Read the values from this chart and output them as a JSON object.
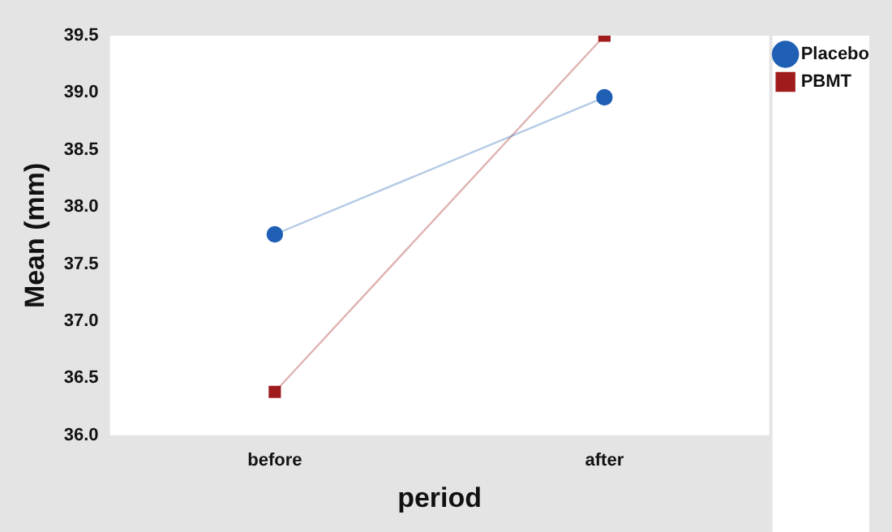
{
  "chart_data": {
    "type": "line",
    "xlabel": "period",
    "ylabel": "Mean (mm)",
    "categories": [
      "before",
      "after"
    ],
    "series": [
      {
        "name": "Placebo",
        "color": "#1f5fb4",
        "values": [
          37.76,
          38.96
        ],
        "marker": "circle"
      },
      {
        "name": "PBMT",
        "color": "#a01c1c",
        "values": [
          36.38,
          39.5
        ],
        "marker": "square"
      }
    ],
    "ylim": [
      36.0,
      39.5
    ],
    "yticks": [
      {
        "value": 36,
        "label": "36.0"
      },
      {
        "value": 36.5,
        "label": "36.5"
      },
      {
        "value": 37,
        "label": "37.0"
      },
      {
        "value": 37.5,
        "label": "37.5"
      },
      {
        "value": 38,
        "label": "38.0"
      },
      {
        "value": 38.5,
        "label": "38.5"
      },
      {
        "value": 39,
        "label": "39.0"
      },
      {
        "value": 39.5,
        "label": "39.5"
      }
    ],
    "grid": false,
    "legend": "right",
    "line_style": "solid"
  }
}
